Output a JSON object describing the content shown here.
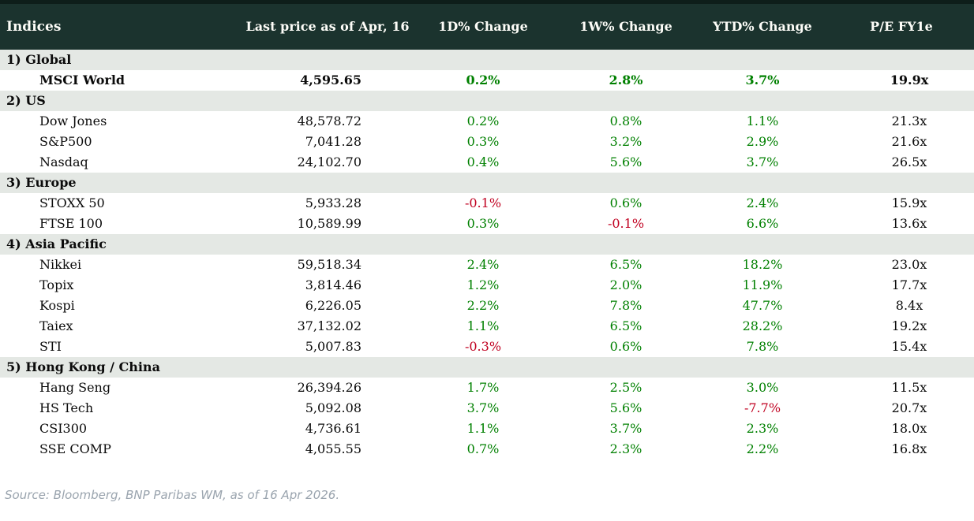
{
  "chart_data": {
    "type": "table",
    "title": "Indices",
    "columns": [
      "Indices",
      "Last price as of Apr, 16",
      "1D% Change",
      "1W% Change",
      "YTD% Change",
      "P/E FY1e"
    ],
    "sections": [
      {
        "label": "1) Global",
        "rows": [
          {
            "name": "MSCI World",
            "last_price": "4,595.65",
            "d1_change": "0.2%",
            "w1_change": "2.8%",
            "ytd_change": "3.7%",
            "pe_fy1e": "19.9x",
            "bold": true
          }
        ]
      },
      {
        "label": "2) US",
        "rows": [
          {
            "name": "Dow Jones",
            "last_price": "48,578.72",
            "d1_change": "0.2%",
            "w1_change": "0.8%",
            "ytd_change": "1.1%",
            "pe_fy1e": "21.3x",
            "bold": false
          },
          {
            "name": "S&P500",
            "last_price": "7,041.28",
            "d1_change": "0.3%",
            "w1_change": "3.2%",
            "ytd_change": "2.9%",
            "pe_fy1e": "21.6x",
            "bold": false
          },
          {
            "name": "Nasdaq",
            "last_price": "24,102.70",
            "d1_change": "0.4%",
            "w1_change": "5.6%",
            "ytd_change": "3.7%",
            "pe_fy1e": "26.5x",
            "bold": false
          }
        ]
      },
      {
        "label": "3) Europe",
        "rows": [
          {
            "name": "STOXX 50",
            "last_price": "5,933.28",
            "d1_change": "-0.1%",
            "w1_change": "0.6%",
            "ytd_change": "2.4%",
            "pe_fy1e": "15.9x",
            "bold": false
          },
          {
            "name": "FTSE 100",
            "last_price": "10,589.99",
            "d1_change": "0.3%",
            "w1_change": "-0.1%",
            "ytd_change": "6.6%",
            "pe_fy1e": "13.6x",
            "bold": false
          }
        ]
      },
      {
        "label": "4) Asia Pacific",
        "rows": [
          {
            "name": "Nikkei",
            "last_price": "59,518.34",
            "d1_change": "2.4%",
            "w1_change": "6.5%",
            "ytd_change": "18.2%",
            "pe_fy1e": "23.0x",
            "bold": false
          },
          {
            "name": "Topix",
            "last_price": "3,814.46",
            "d1_change": "1.2%",
            "w1_change": "2.0%",
            "ytd_change": "11.9%",
            "pe_fy1e": "17.7x",
            "bold": false
          },
          {
            "name": "Kospi",
            "last_price": "6,226.05",
            "d1_change": "2.2%",
            "w1_change": "7.8%",
            "ytd_change": "47.7%",
            "pe_fy1e": "8.4x",
            "bold": false
          },
          {
            "name": "Taiex",
            "last_price": "37,132.02",
            "d1_change": "1.1%",
            "w1_change": "6.5%",
            "ytd_change": "28.2%",
            "pe_fy1e": "19.2x",
            "bold": false
          },
          {
            "name": "STI",
            "last_price": "5,007.83",
            "d1_change": "-0.3%",
            "w1_change": "0.6%",
            "ytd_change": "7.8%",
            "pe_fy1e": "15.4x",
            "bold": false
          }
        ]
      },
      {
        "label": "5) Hong Kong / China",
        "rows": [
          {
            "name": "Hang Seng",
            "last_price": "26,394.26",
            "d1_change": "1.7%",
            "w1_change": "2.5%",
            "ytd_change": "3.0%",
            "pe_fy1e": "11.5x",
            "bold": false
          },
          {
            "name": "HS Tech",
            "last_price": "5,092.08",
            "d1_change": "3.7%",
            "w1_change": "5.6%",
            "ytd_change": "-7.7%",
            "pe_fy1e": "20.7x",
            "bold": false
          },
          {
            "name": "CSI300",
            "last_price": "4,736.61",
            "d1_change": "1.1%",
            "w1_change": "3.7%",
            "ytd_change": "2.3%",
            "pe_fy1e": "18.0x",
            "bold": false
          },
          {
            "name": "SSE COMP",
            "last_price": "4,055.55",
            "d1_change": "0.7%",
            "w1_change": "2.3%",
            "ytd_change": "2.2%",
            "pe_fy1e": "16.8x",
            "bold": false
          }
        ]
      }
    ],
    "layout": {
      "positive_color": "#008000",
      "negative_color": "#c00020",
      "header_bg_color": "#1b332e",
      "section_bg_color": "#e4e8e4"
    }
  },
  "footer": {
    "source_text": "Source: Bloomberg, BNP Paribas WM, as of 16 Apr 2026."
  },
  "colors": {
    "header_bg": "#1b332e",
    "header_top_bar": "#0e1e1a",
    "section_bg": "#e4e8e4",
    "positive": "#008000",
    "negative": "#c00020",
    "source_text": "#9aa4ae"
  }
}
